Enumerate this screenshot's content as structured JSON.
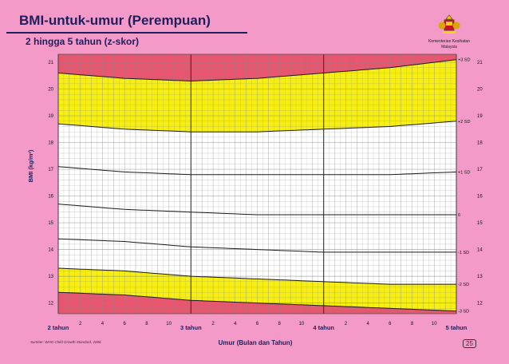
{
  "header": {
    "title": "BMI-untuk-umur (Perempuan)",
    "subtitle": "2 hingga 5 tahun (z-skor)"
  },
  "logo": {
    "line1": "Kementerian Kesihatan",
    "line2": "Malaysia"
  },
  "footer": {
    "source": "Sumber: WHO Child Growth Standard, 2006",
    "page_number": "25"
  },
  "colors": {
    "background": "#f49ac9",
    "red_band": "#e8556e",
    "yellow_band": "#f7ef12",
    "white_band": "#ffffff",
    "curve": "#1a1a1a",
    "text_dark": "#1e1e5a"
  },
  "chart_data": {
    "type": "line",
    "ylabel": "BMI (kg/m²)",
    "xlabel": "Umur (Bulan dan Tahun)",
    "ylim": [
      11.6,
      21.3
    ],
    "xlim": [
      24,
      60
    ],
    "y_ticks": [
      "12",
      "13",
      "14",
      "15",
      "16",
      "17",
      "18",
      "19",
      "20",
      "21"
    ],
    "x_ticks": [
      {
        "month": 24,
        "label": "2 tahun",
        "major": true
      },
      {
        "month": 26,
        "label": "2",
        "major": false
      },
      {
        "month": 28,
        "label": "4",
        "major": false
      },
      {
        "month": 30,
        "label": "6",
        "major": false
      },
      {
        "month": 32,
        "label": "8",
        "major": false
      },
      {
        "month": 34,
        "label": "10",
        "major": false
      },
      {
        "month": 36,
        "label": "3 tahun",
        "major": true
      },
      {
        "month": 38,
        "label": "2",
        "major": false
      },
      {
        "month": 40,
        "label": "4",
        "major": false
      },
      {
        "month": 42,
        "label": "6",
        "major": false
      },
      {
        "month": 44,
        "label": "8",
        "major": false
      },
      {
        "month": 46,
        "label": "10",
        "major": false
      },
      {
        "month": 48,
        "label": "4 tahun",
        "major": true
      },
      {
        "month": 50,
        "label": "2",
        "major": false
      },
      {
        "month": 52,
        "label": "4",
        "major": false
      },
      {
        "month": 54,
        "label": "6",
        "major": false
      },
      {
        "month": 56,
        "label": "8",
        "major": false
      },
      {
        "month": 58,
        "label": "10",
        "major": false
      },
      {
        "month": 60,
        "label": "5 tahun",
        "major": true
      }
    ],
    "x": [
      24,
      30,
      36,
      42,
      48,
      54,
      60
    ],
    "series": [
      {
        "name": "+3 SD",
        "values": [
          20.6,
          20.4,
          20.3,
          20.4,
          20.6,
          20.8,
          21.1
        ]
      },
      {
        "name": "+2 SD",
        "values": [
          18.7,
          18.5,
          18.4,
          18.4,
          18.5,
          18.6,
          18.8
        ]
      },
      {
        "name": "+1 SD",
        "values": [
          17.1,
          16.9,
          16.8,
          16.8,
          16.8,
          16.8,
          16.9
        ]
      },
      {
        "name": "0",
        "values": [
          15.7,
          15.5,
          15.4,
          15.3,
          15.3,
          15.3,
          15.3
        ]
      },
      {
        "name": "-1 SD",
        "values": [
          14.4,
          14.3,
          14.1,
          14.0,
          13.9,
          13.9,
          13.9
        ]
      },
      {
        "name": "-2 SD",
        "values": [
          13.3,
          13.2,
          13.0,
          12.9,
          12.8,
          12.7,
          12.7
        ]
      },
      {
        "name": "-3 SD",
        "values": [
          12.4,
          12.3,
          12.1,
          12.0,
          11.9,
          11.8,
          11.7
        ]
      }
    ]
  }
}
